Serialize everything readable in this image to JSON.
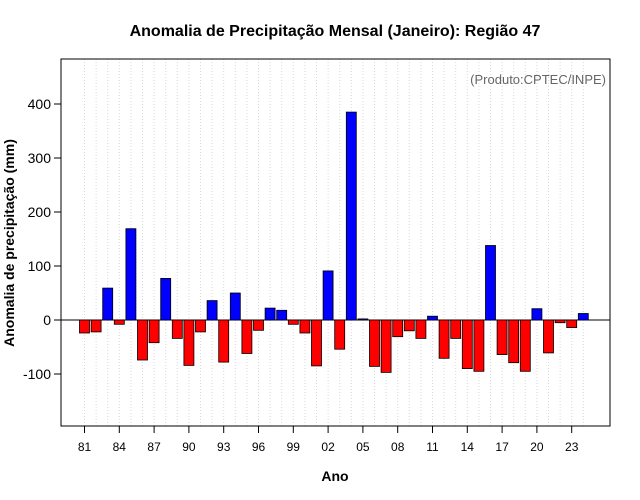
{
  "chart_data": {
    "type": "bar",
    "title": "Anomalia de Precipitação Mensal (Janeiro): Região 47",
    "xlabel": "Ano",
    "ylabel": "Anomalia de precipitação (mm)",
    "annotation": "(Produto:CPTEC/INPE)",
    "ylim": [
      -200,
      480
    ],
    "yticks": [
      -100,
      0,
      100,
      200,
      300,
      400
    ],
    "grid": "vertical-dotted",
    "x": [
      1981,
      1982,
      1983,
      1984,
      1985,
      1986,
      1987,
      1988,
      1989,
      1990,
      1991,
      1992,
      1993,
      1994,
      1995,
      1996,
      1997,
      1998,
      1999,
      2000,
      2001,
      2002,
      2003,
      2004,
      2005,
      2006,
      2007,
      2008,
      2009,
      2010,
      2011,
      2012,
      2013,
      2014,
      2015,
      2016,
      2017,
      2018,
      2019,
      2020,
      2021,
      2022,
      2023,
      2024
    ],
    "xtick_labels": [
      "81",
      "",
      "",
      "84",
      "",
      "",
      "87",
      "",
      "",
      "90",
      "",
      "",
      "93",
      "",
      "",
      "96",
      "",
      "",
      "99",
      "",
      "",
      "02",
      "",
      "",
      "05",
      "",
      "",
      "08",
      "",
      "",
      "11",
      "",
      "",
      "14",
      "",
      "",
      "17",
      "",
      "",
      "20",
      "",
      "",
      "23",
      ""
    ],
    "values": [
      -24,
      -22,
      59,
      -8,
      169,
      -74,
      -42,
      77,
      -34,
      -84,
      -22,
      36,
      -78,
      50,
      -62,
      -19,
      22,
      18,
      -8,
      -24,
      -85,
      91,
      -54,
      385,
      2,
      -86,
      -97,
      -31,
      -20,
      -34,
      7,
      -71,
      -34,
      -90,
      -95,
      138,
      -64,
      -79,
      -95,
      21,
      -61,
      -5,
      -14,
      12
    ],
    "colors": {
      "positive": "#0000ff",
      "negative": "#ff0000",
      "edge": "#000000",
      "grid": "#d9d9d9",
      "annotation": "#666666"
    }
  }
}
